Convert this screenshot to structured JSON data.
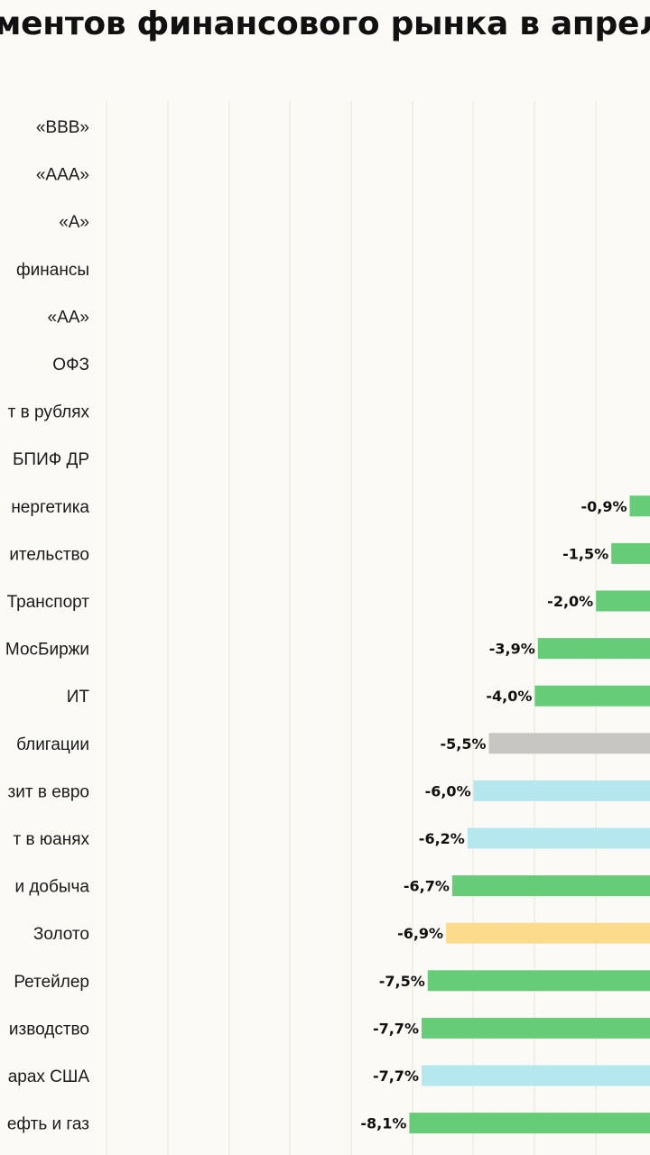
{
  "title": "ментов финансового рынка в апрел",
  "colors": {
    "background": "#fbfaf6",
    "stocks": "#66cc77",
    "currency": "#b4e8ee",
    "bonds": "#c8c6c2",
    "gold": "#fcdc8c"
  },
  "chart_data": {
    "type": "bar",
    "orientation": "horizontal",
    "title": "ментов финансового рынка в апрел",
    "xlabel": "",
    "ylabel": "",
    "grid": true,
    "xlim": [
      -12,
      0
    ],
    "value_unit": "%",
    "categories": [
      "«BBB»",
      "«AAA»",
      "«A»",
      "финансы",
      "«AA»",
      "ОФЗ",
      "т в рублях",
      "БПИФ ДР",
      "нергетика",
      "ительство",
      "Транспорт",
      "МосБиржи",
      "ИТ",
      "блигации",
      "зит в евро",
      "т в юанях",
      "и добыча",
      "Золото",
      "Ретейлер",
      "изводство",
      "арах США",
      "ефть и газ"
    ],
    "values": [
      null,
      null,
      null,
      null,
      null,
      null,
      null,
      null,
      -0.9,
      -1.5,
      -2.0,
      -3.9,
      -4.0,
      -5.5,
      -6.0,
      -6.2,
      -6.7,
      -6.9,
      -7.5,
      -7.7,
      -7.7,
      -8.1
    ],
    "labels": [
      "",
      "",
      "",
      "",
      "",
      "",
      "",
      "",
      "-0,9%",
      "-1,5%",
      "-2,0%",
      "-3,9%",
      "-4,0%",
      "-5,5%",
      "-6,0%",
      "-6,2%",
      "-6,7%",
      "-6,9%",
      "-7,5%",
      "-7,7%",
      "-7,7%",
      "-8,1%"
    ],
    "groups": [
      "",
      "",
      "",
      "",
      "",
      "",
      "",
      "",
      "stocks",
      "stocks",
      "stocks",
      "stocks",
      "stocks",
      "bonds",
      "currency",
      "currency",
      "stocks",
      "gold",
      "stocks",
      "stocks",
      "currency",
      "stocks"
    ]
  }
}
